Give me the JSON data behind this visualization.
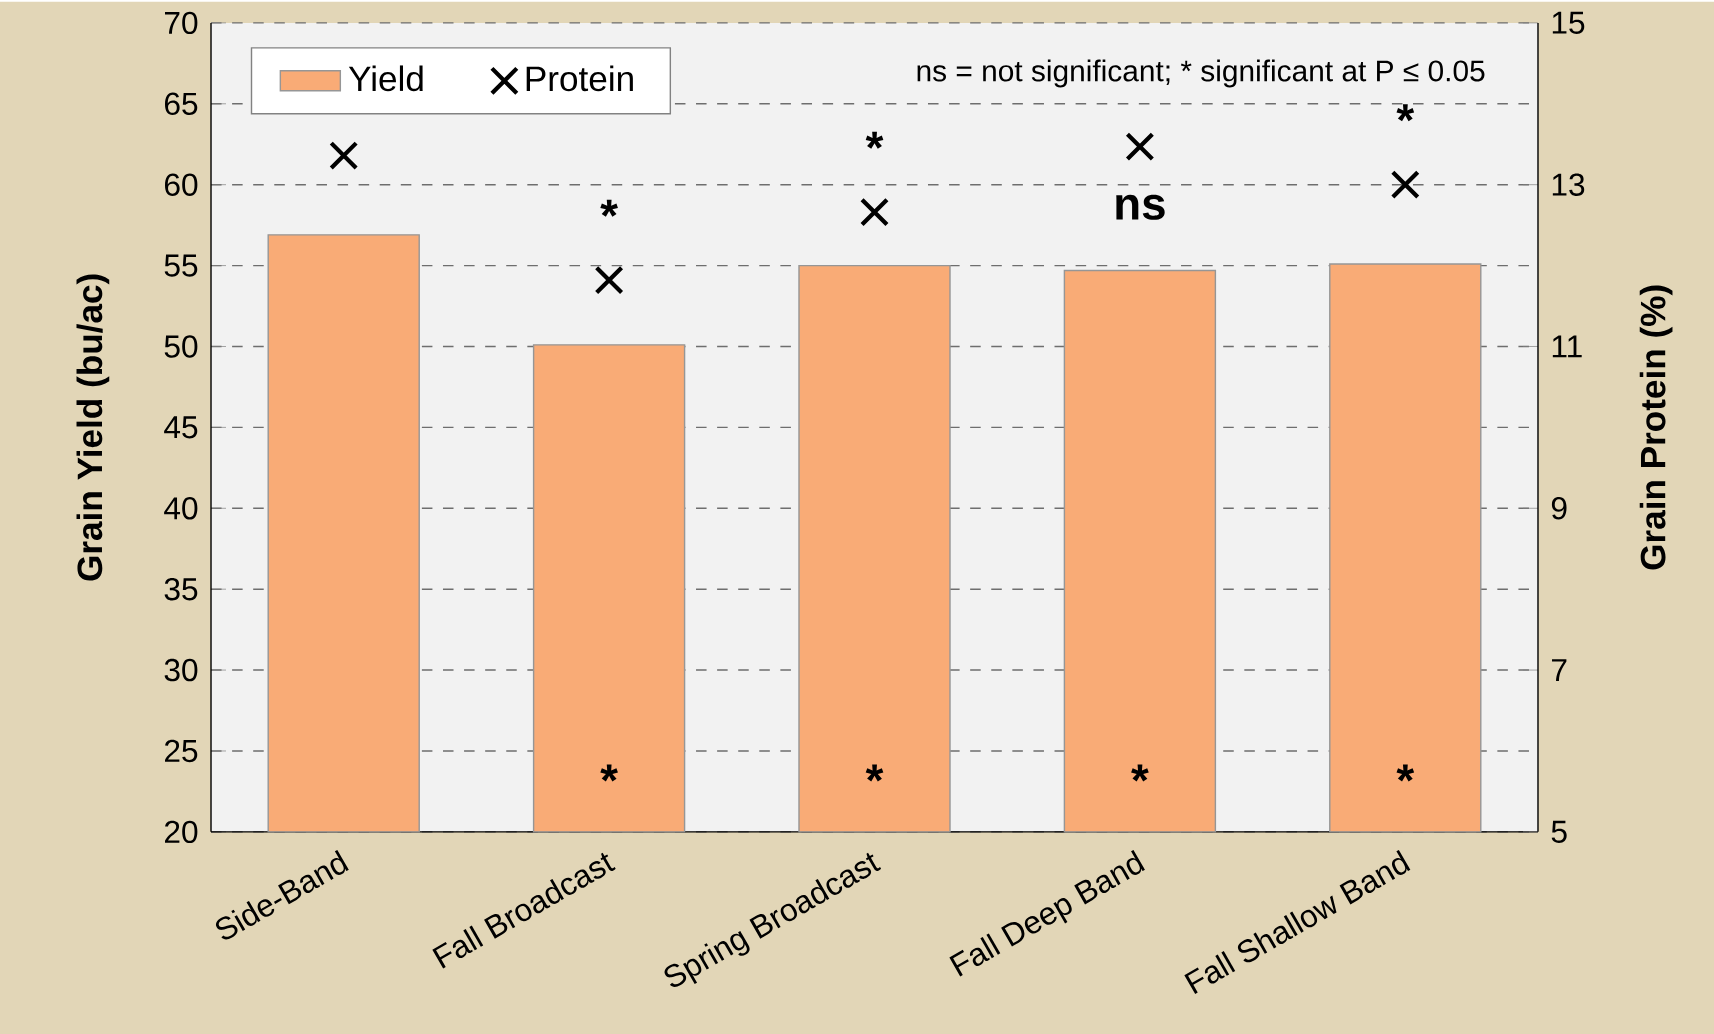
{
  "chart_data": {
    "type": "bar",
    "ylabel": "Grain Yield (bu/ac)",
    "y2label": "Grain Protein (%)",
    "categories": [
      "Side-Band",
      "Fall Broadcast",
      "Spring Broadcast",
      "Fall Deep Band",
      "Fall Shallow Band"
    ],
    "series": [
      {
        "name": "Yield",
        "color": "#f9ab76",
        "values": [
          56.9,
          50.1,
          55.0,
          54.7,
          55.1
        ]
      },
      {
        "name": "Protein",
        "type": "scatter",
        "axis": "y2",
        "marker": "cross",
        "color": "#000000",
        "values": [
          13.36,
          11.82,
          12.66,
          13.47,
          13.0
        ]
      }
    ],
    "ylim": [
      20,
      70
    ],
    "yticks": [
      20,
      25,
      30,
      35,
      40,
      45,
      50,
      55,
      60,
      65,
      70
    ],
    "y2lim": [
      5,
      15
    ],
    "y2ticks": [
      5,
      7,
      9,
      11,
      13,
      15
    ],
    "grid": "y",
    "legend": "top left",
    "annotations": [
      "ns = not significant; * significant at P ≤ 0.05",
      "*",
      "*",
      "*",
      "*",
      "*",
      "*",
      "ns",
      "*"
    ]
  }
}
